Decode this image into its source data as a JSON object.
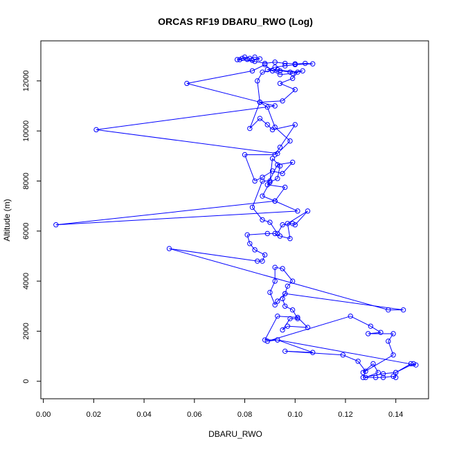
{
  "chart_data": {
    "type": "line",
    "title": "ORCAS RF19 DBARU_RWO (Log)",
    "xlabel": "DBARU_RWO",
    "ylabel": "Altitude (m)",
    "xlim": [
      -0.001,
      0.153
    ],
    "ylim": [
      -700,
      13600
    ],
    "xticks": [
      0.0,
      0.02,
      0.04,
      0.06,
      0.08,
      0.1,
      0.12,
      0.14
    ],
    "xtick_labels": [
      "0.00",
      "0.02",
      "0.04",
      "0.06",
      "0.08",
      "0.10",
      "0.12",
      "0.14"
    ],
    "yticks": [
      0,
      2000,
      4000,
      6000,
      8000,
      10000,
      12000
    ],
    "ytick_labels": [
      "0",
      "2000",
      "4000",
      "6000",
      "8000",
      "10000",
      "12000"
    ],
    "grid": false,
    "legend": "none",
    "series_color": "#0000ff",
    "series": [
      {
        "marker": "open-circle",
        "points": [
          [
            0.078,
            12850
          ],
          [
            0.08,
            12950
          ],
          [
            0.082,
            12900
          ],
          [
            0.084,
            12950
          ],
          [
            0.086,
            12880
          ],
          [
            0.083,
            12820
          ],
          [
            0.081,
            12860
          ],
          [
            0.079,
            12900
          ],
          [
            0.077,
            12850
          ],
          [
            0.084,
            12780
          ],
          [
            0.088,
            12700
          ],
          [
            0.092,
            12750
          ],
          [
            0.096,
            12700
          ],
          [
            0.1,
            12680
          ],
          [
            0.104,
            12700
          ],
          [
            0.107,
            12680
          ],
          [
            0.1,
            12650
          ],
          [
            0.096,
            12600
          ],
          [
            0.092,
            12550
          ],
          [
            0.089,
            12450
          ],
          [
            0.094,
            12400
          ],
          [
            0.098,
            12350
          ],
          [
            0.103,
            12400
          ],
          [
            0.099,
            12300
          ],
          [
            0.094,
            12250
          ],
          [
            0.091,
            12400
          ],
          [
            0.088,
            12650
          ],
          [
            0.083,
            12400
          ],
          [
            0.057,
            11900
          ],
          [
            0.086,
            11150
          ],
          [
            0.092,
            11000
          ],
          [
            0.021,
            10050
          ],
          [
            0.093,
            9100
          ],
          [
            0.098,
            9600
          ],
          [
            0.092,
            10150
          ],
          [
            0.089,
            10950
          ],
          [
            0.086,
            11150
          ],
          [
            0.095,
            11200
          ],
          [
            0.1,
            11650
          ],
          [
            0.094,
            11900
          ],
          [
            0.099,
            12100
          ],
          [
            0.101,
            12350
          ],
          [
            0.093,
            12450
          ],
          [
            0.087,
            12350
          ],
          [
            0.085,
            12000
          ],
          [
            0.086,
            11150
          ],
          [
            0.082,
            10100
          ],
          [
            0.086,
            10500
          ],
          [
            0.089,
            10250
          ],
          [
            0.091,
            10050
          ],
          [
            0.1,
            10250
          ],
          [
            0.094,
            9350
          ],
          [
            0.092,
            9050
          ],
          [
            0.08,
            9050
          ],
          [
            0.084,
            8000
          ],
          [
            0.087,
            8150
          ],
          [
            0.091,
            8400
          ],
          [
            0.095,
            8300
          ],
          [
            0.099,
            8750
          ],
          [
            0.093,
            8650
          ],
          [
            0.089,
            7850
          ],
          [
            0.096,
            7750
          ],
          [
            0.092,
            7200
          ],
          [
            0.101,
            6800
          ],
          [
            0.005,
            6250
          ],
          [
            0.092,
            7200
          ],
          [
            0.087,
            7400
          ],
          [
            0.09,
            7950
          ],
          [
            0.093,
            8100
          ],
          [
            0.094,
            8600
          ],
          [
            0.091,
            8900
          ],
          [
            0.09,
            8000
          ],
          [
            0.087,
            8000
          ],
          [
            0.083,
            6950
          ],
          [
            0.087,
            6450
          ],
          [
            0.09,
            6350
          ],
          [
            0.093,
            5900
          ],
          [
            0.095,
            6250
          ],
          [
            0.099,
            6300
          ],
          [
            0.1,
            6250
          ],
          [
            0.105,
            6800
          ],
          [
            0.097,
            6300
          ],
          [
            0.098,
            5700
          ],
          [
            0.094,
            5800
          ],
          [
            0.092,
            5900
          ],
          [
            0.089,
            5900
          ],
          [
            0.081,
            5850
          ],
          [
            0.082,
            5500
          ],
          [
            0.084,
            5250
          ],
          [
            0.088,
            5050
          ],
          [
            0.087,
            4800
          ],
          [
            0.085,
            4800
          ],
          [
            0.05,
            5300
          ],
          [
            0.137,
            2850
          ],
          [
            0.143,
            2850
          ],
          [
            0.096,
            3500
          ],
          [
            0.097,
            3800
          ],
          [
            0.099,
            4000
          ],
          [
            0.095,
            4500
          ],
          [
            0.092,
            4550
          ],
          [
            0.092,
            4000
          ],
          [
            0.09,
            3550
          ],
          [
            0.092,
            3050
          ],
          [
            0.093,
            3200
          ],
          [
            0.096,
            3500
          ],
          [
            0.095,
            3300
          ],
          [
            0.096,
            3000
          ],
          [
            0.099,
            2850
          ],
          [
            0.101,
            2500
          ],
          [
            0.098,
            2500
          ],
          [
            0.095,
            2050
          ],
          [
            0.097,
            2200
          ],
          [
            0.105,
            2150
          ],
          [
            0.101,
            2550
          ],
          [
            0.093,
            2600
          ],
          [
            0.088,
            1650
          ],
          [
            0.093,
            1650
          ],
          [
            0.089,
            1600
          ],
          [
            0.122,
            2600
          ],
          [
            0.13,
            2200
          ],
          [
            0.134,
            1950
          ],
          [
            0.129,
            1900
          ],
          [
            0.139,
            1900
          ],
          [
            0.137,
            1600
          ],
          [
            0.139,
            1050
          ],
          [
            0.127,
            350
          ],
          [
            0.131,
            700
          ],
          [
            0.133,
            350
          ],
          [
            0.128,
            150
          ],
          [
            0.132,
            150
          ],
          [
            0.135,
            150
          ],
          [
            0.139,
            200
          ],
          [
            0.14,
            150
          ],
          [
            0.14,
            350
          ],
          [
            0.147,
            700
          ],
          [
            0.148,
            650
          ],
          [
            0.093,
            1650
          ],
          [
            0.107,
            1150
          ],
          [
            0.096,
            1200
          ],
          [
            0.119,
            1050
          ],
          [
            0.125,
            800
          ],
          [
            0.128,
            400
          ],
          [
            0.127,
            150
          ],
          [
            0.135,
            300
          ],
          [
            0.14,
            350
          ],
          [
            0.146,
            700
          ]
        ]
      }
    ]
  }
}
